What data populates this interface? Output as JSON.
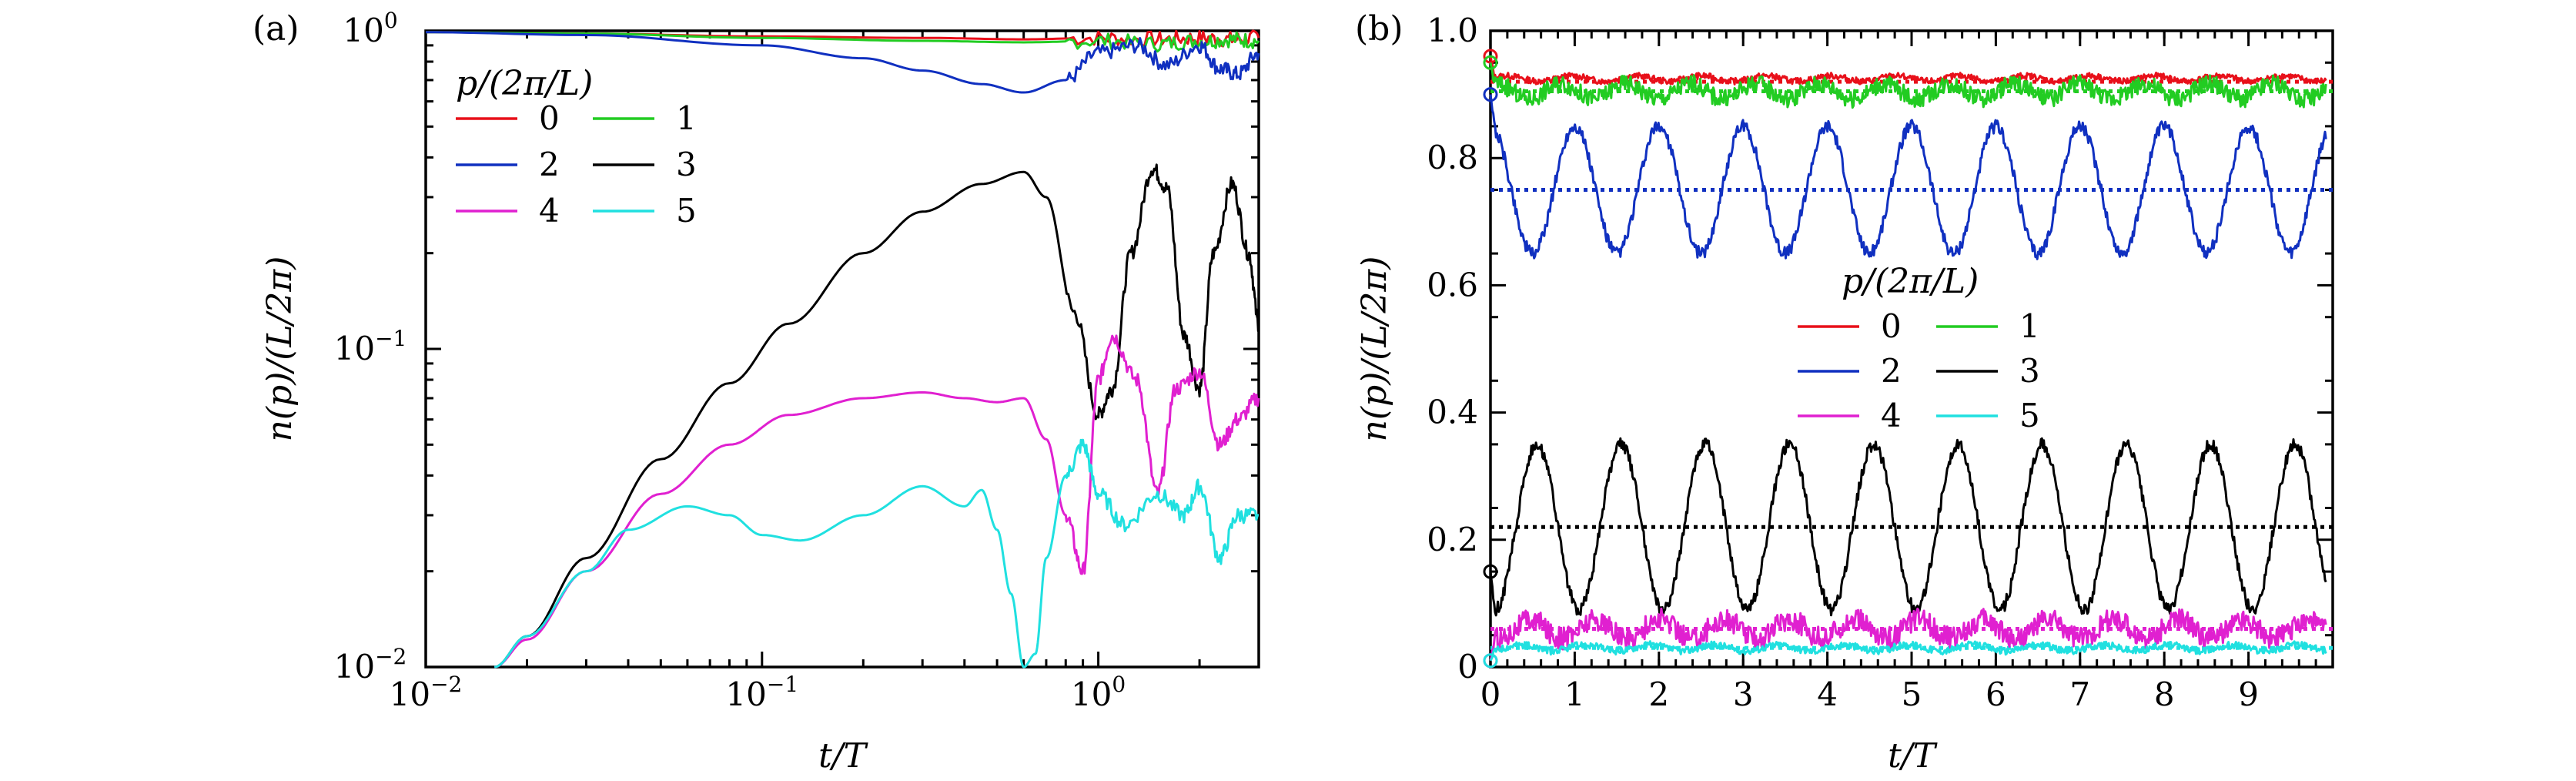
{
  "colors": {
    "0": "#e8101a",
    "1": "#22cc22",
    "2": "#1030c0",
    "3": "#000000",
    "4": "#e020d0",
    "5": "#20e0e0"
  },
  "chart_data": [
    {
      "panel": "(a)",
      "type": "line",
      "xlabel": "t/T",
      "ylabel": "n(p)/(L/2π)",
      "xscale": "log",
      "yscale": "log",
      "xlim": [
        0.01,
        3
      ],
      "ylim": [
        0.01,
        1
      ],
      "xticks": [
        {
          "v": 0.01,
          "base": "10",
          "exp": "−2"
        },
        {
          "v": 0.1,
          "base": "10",
          "exp": "−1"
        },
        {
          "v": 1,
          "base": "10",
          "exp": "0"
        }
      ],
      "yticks": [
        {
          "v": 0.01,
          "base": "10",
          "exp": "−2"
        },
        {
          "v": 0.1,
          "base": "10",
          "exp": "−1"
        },
        {
          "v": 1,
          "base": "10",
          "exp": "0"
        }
      ],
      "legend": {
        "title": "p/(2π/L)",
        "position": "upper-left",
        "entries": [
          "0",
          "1",
          "2",
          "3",
          "4",
          "5"
        ]
      },
      "series": [
        {
          "name": "0",
          "x": [
            0.01,
            0.03,
            0.1,
            0.3,
            0.6,
            1.0,
            1.5,
            2.0,
            2.5,
            3.0
          ],
          "y": [
            0.99,
            0.98,
            0.96,
            0.95,
            0.94,
            0.95,
            0.94,
            0.95,
            0.94,
            0.95
          ]
        },
        {
          "name": "1",
          "x": [
            0.01,
            0.03,
            0.1,
            0.3,
            0.6,
            1.0,
            1.5,
            2.0,
            2.5,
            3.0
          ],
          "y": [
            0.99,
            0.98,
            0.95,
            0.93,
            0.92,
            0.93,
            0.91,
            0.93,
            0.94,
            0.93
          ]
        },
        {
          "name": "2",
          "x": [
            0.01,
            0.03,
            0.1,
            0.2,
            0.3,
            0.45,
            0.6,
            0.8,
            1.0,
            1.3,
            1.6,
            2.0,
            2.3,
            2.6,
            3.0
          ],
          "y": [
            0.99,
            0.97,
            0.9,
            0.82,
            0.75,
            0.68,
            0.64,
            0.7,
            0.85,
            0.9,
            0.78,
            0.9,
            0.76,
            0.73,
            0.85
          ]
        },
        {
          "name": "3",
          "x": [
            0.016,
            0.02,
            0.03,
            0.05,
            0.08,
            0.12,
            0.2,
            0.3,
            0.45,
            0.6,
            0.7,
            0.85,
            1.0,
            1.1,
            1.25,
            1.45,
            1.6,
            1.8,
            2.0,
            2.2,
            2.5,
            2.8,
            3.0
          ],
          "y": [
            0.01,
            0.0125,
            0.022,
            0.045,
            0.078,
            0.12,
            0.2,
            0.27,
            0.33,
            0.36,
            0.3,
            0.13,
            0.062,
            0.075,
            0.2,
            0.37,
            0.32,
            0.11,
            0.075,
            0.2,
            0.33,
            0.2,
            0.12
          ]
        },
        {
          "name": "4",
          "x": [
            0.016,
            0.02,
            0.03,
            0.05,
            0.08,
            0.12,
            0.2,
            0.3,
            0.4,
            0.5,
            0.6,
            0.7,
            0.8,
            0.9,
            1.0,
            1.1,
            1.3,
            1.5,
            1.7,
            2.0,
            2.3,
            2.6,
            3.0
          ],
          "y": [
            0.01,
            0.0122,
            0.02,
            0.035,
            0.05,
            0.062,
            0.07,
            0.073,
            0.07,
            0.068,
            0.07,
            0.052,
            0.03,
            0.02,
            0.08,
            0.11,
            0.08,
            0.035,
            0.075,
            0.085,
            0.05,
            0.06,
            0.07
          ]
        },
        {
          "name": "5",
          "x": [
            0.016,
            0.02,
            0.03,
            0.04,
            0.06,
            0.08,
            0.1,
            0.13,
            0.2,
            0.3,
            0.4,
            0.45,
            0.5,
            0.55,
            0.6,
            0.65,
            0.7,
            0.8,
            0.9,
            1.0,
            1.2,
            1.5,
            1.8,
            2.0,
            2.3,
            2.6,
            3.0
          ],
          "y": [
            0.01,
            0.0125,
            0.02,
            0.027,
            0.032,
            0.03,
            0.026,
            0.025,
            0.03,
            0.037,
            0.032,
            0.036,
            0.027,
            0.017,
            0.01,
            0.011,
            0.022,
            0.04,
            0.05,
            0.035,
            0.028,
            0.035,
            0.03,
            0.037,
            0.022,
            0.03,
            0.03
          ]
        }
      ]
    },
    {
      "panel": "(b)",
      "type": "line",
      "xlabel": "t/T",
      "ylabel": "n(p)/(L/2π)",
      "xlim": [
        0,
        10
      ],
      "ylim": [
        0,
        1.0
      ],
      "xticks": [
        0,
        1,
        2,
        3,
        4,
        5,
        6,
        7,
        8,
        9
      ],
      "yticks": [
        {
          "v": 0,
          "label": "0"
        },
        {
          "v": 0.2,
          "label": "0.2"
        },
        {
          "v": 0.4,
          "label": "0.4"
        },
        {
          "v": 0.6,
          "label": "0.6"
        },
        {
          "v": 0.8,
          "label": "0.8"
        },
        {
          "v": 1.0,
          "label": "1.0"
        }
      ],
      "legend": {
        "title": "p/(2π/L)",
        "position": "center",
        "entries": [
          "0",
          "1",
          "2",
          "3",
          "4",
          "5"
        ]
      },
      "means": [
        {
          "name": "0",
          "y": 0.92
        },
        {
          "name": "1",
          "y": 0.905
        },
        {
          "name": "2",
          "y": 0.75
        },
        {
          "name": "3",
          "y": 0.22
        },
        {
          "name": "4",
          "y": 0.06
        },
        {
          "name": "5",
          "y": 0.03
        }
      ],
      "series": [
        {
          "name": "0",
          "period": 1.0,
          "phase": 0,
          "base": 0.925,
          "amp": 0.007,
          "y0": 0.96
        },
        {
          "name": "1",
          "period": 1.0,
          "phase": 0,
          "base": 0.905,
          "amp": 0.02,
          "y0": 0.95
        },
        {
          "name": "2",
          "period": 1.0,
          "phase": 0,
          "base": 0.75,
          "amp": 0.1,
          "y0": 0.9
        },
        {
          "name": "3",
          "period": 1.0,
          "phase": 0,
          "base": 0.22,
          "amp": 0.13,
          "y0": 0.15
        },
        {
          "name": "4",
          "period": 1.0,
          "phase": 0,
          "base": 0.06,
          "amp": 0.025,
          "y0": 0.01
        },
        {
          "name": "5",
          "period": 1.0,
          "phase": 0,
          "base": 0.03,
          "amp": 0.008,
          "y0": 0.01
        }
      ]
    }
  ]
}
